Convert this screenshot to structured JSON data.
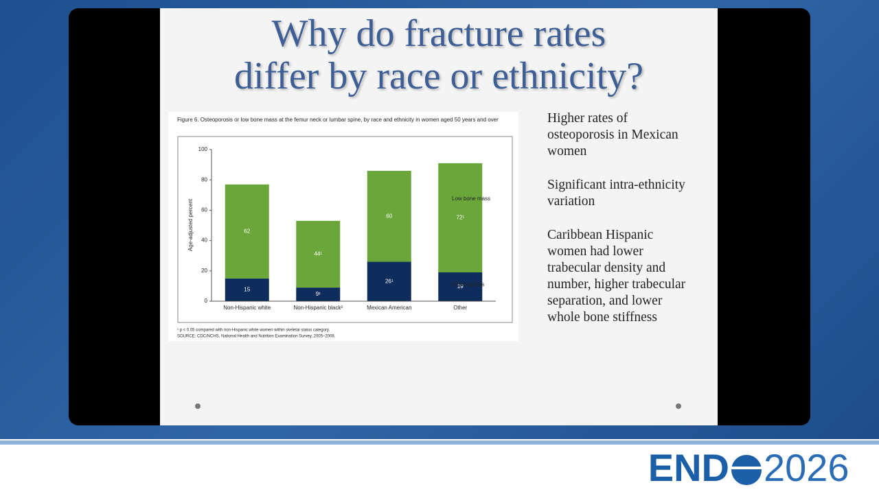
{
  "slide": {
    "title_lines": [
      "Why do fracture rates",
      "differ by race or ethnicity?"
    ],
    "points": [
      "Higher rates of osteoporosis in Mexican women",
      "Significant intra-ethnicity variation",
      "Caribbean Hispanic women had lower trabecular density and number, higher trabecular separation, and lower whole bone stiffness"
    ]
  },
  "logo": {
    "left": "END",
    "right": "2026"
  },
  "chart_data": {
    "type": "stacked-bar",
    "title": "Figure 6. Osteoporosis or low bone mass at the femur neck or lumbar spine, by race and ethnicity in women aged 50 years and over",
    "y_label": "Age-adjusted percent",
    "categories": [
      "Non-Hispanic white",
      "Non-Hispanic black²",
      "Mexican American",
      "Other"
    ],
    "series": [
      {
        "name": "Osteoporosis",
        "color": "#0f2d5c",
        "values": [
          15,
          9,
          26,
          19
        ],
        "value_labels": [
          "15",
          "9¹",
          "26¹",
          "19"
        ]
      },
      {
        "name": "Low bone mass",
        "color": "#6ba63a",
        "values": [
          62,
          44,
          60,
          72
        ],
        "value_labels": [
          "62",
          "44¹",
          "60",
          "72¹"
        ]
      }
    ],
    "ylim": [
      0,
      100
    ],
    "yticks": [
      0,
      20,
      40,
      60,
      80,
      100
    ],
    "legend": "right",
    "footnote": "¹ p < 0.05 compared with non-Hispanic white women within skeletal status category.",
    "source": "SOURCE: CDC/NCHS, National Health and Nutrition Examination Survey, 2005–2008."
  }
}
